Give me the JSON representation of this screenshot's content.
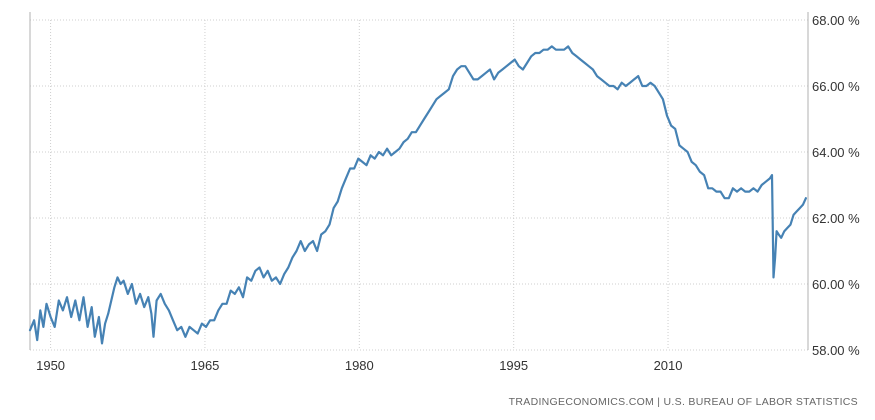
{
  "chart_data": {
    "type": "line",
    "title": "",
    "xlabel": "",
    "ylabel": "",
    "xlim": [
      1948,
      2021.6
    ],
    "ylim": [
      58,
      68
    ],
    "x_ticks": [
      1950,
      1965,
      1980,
      1995,
      2010
    ],
    "x_tick_labels": [
      "1950",
      "1965",
      "1980",
      "1995",
      "2010"
    ],
    "y_ticks": [
      58,
      60,
      62,
      64,
      66,
      68
    ],
    "y_tick_labels": [
      "58.00 %",
      "60.00 %",
      "62.00 %",
      "64.00 %",
      "66.00 %",
      "68.00 %"
    ],
    "grid": true,
    "series_color": "#4682b4",
    "series": [
      {
        "points": [
          [
            1948.0,
            58.6
          ],
          [
            1948.4,
            58.9
          ],
          [
            1948.7,
            58.3
          ],
          [
            1949.0,
            59.2
          ],
          [
            1949.3,
            58.7
          ],
          [
            1949.6,
            59.4
          ],
          [
            1950.0,
            59.0
          ],
          [
            1950.4,
            58.7
          ],
          [
            1950.8,
            59.5
          ],
          [
            1951.2,
            59.2
          ],
          [
            1951.6,
            59.6
          ],
          [
            1952.0,
            59.0
          ],
          [
            1952.4,
            59.5
          ],
          [
            1952.8,
            58.9
          ],
          [
            1953.2,
            59.6
          ],
          [
            1953.6,
            58.7
          ],
          [
            1954.0,
            59.3
          ],
          [
            1954.3,
            58.4
          ],
          [
            1954.7,
            59.0
          ],
          [
            1955.0,
            58.2
          ],
          [
            1955.3,
            58.8
          ],
          [
            1955.6,
            59.1
          ],
          [
            1955.9,
            59.5
          ],
          [
            1956.2,
            59.9
          ],
          [
            1956.5,
            60.2
          ],
          [
            1956.8,
            60.0
          ],
          [
            1957.1,
            60.1
          ],
          [
            1957.5,
            59.7
          ],
          [
            1957.9,
            60.0
          ],
          [
            1958.3,
            59.4
          ],
          [
            1958.7,
            59.7
          ],
          [
            1959.1,
            59.3
          ],
          [
            1959.5,
            59.6
          ],
          [
            1959.8,
            59.1
          ],
          [
            1960.0,
            58.4
          ],
          [
            1960.3,
            59.5
          ],
          [
            1960.7,
            59.7
          ],
          [
            1961.1,
            59.4
          ],
          [
            1961.5,
            59.2
          ],
          [
            1961.9,
            58.9
          ],
          [
            1962.3,
            58.6
          ],
          [
            1962.7,
            58.7
          ],
          [
            1963.1,
            58.4
          ],
          [
            1963.5,
            58.7
          ],
          [
            1963.9,
            58.6
          ],
          [
            1964.3,
            58.5
          ],
          [
            1964.7,
            58.8
          ],
          [
            1965.1,
            58.7
          ],
          [
            1965.5,
            58.9
          ],
          [
            1965.9,
            58.9
          ],
          [
            1966.3,
            59.2
          ],
          [
            1966.7,
            59.4
          ],
          [
            1967.1,
            59.4
          ],
          [
            1967.5,
            59.8
          ],
          [
            1967.9,
            59.7
          ],
          [
            1968.3,
            59.9
          ],
          [
            1968.7,
            59.6
          ],
          [
            1969.1,
            60.2
          ],
          [
            1969.5,
            60.1
          ],
          [
            1969.9,
            60.4
          ],
          [
            1970.3,
            60.5
          ],
          [
            1970.7,
            60.2
          ],
          [
            1971.1,
            60.4
          ],
          [
            1971.5,
            60.1
          ],
          [
            1971.9,
            60.2
          ],
          [
            1972.3,
            60.0
          ],
          [
            1972.7,
            60.3
          ],
          [
            1973.1,
            60.5
          ],
          [
            1973.5,
            60.8
          ],
          [
            1973.9,
            61.0
          ],
          [
            1974.3,
            61.3
          ],
          [
            1974.7,
            61.0
          ],
          [
            1975.1,
            61.2
          ],
          [
            1975.5,
            61.3
          ],
          [
            1975.9,
            61.0
          ],
          [
            1976.3,
            61.5
          ],
          [
            1976.7,
            61.6
          ],
          [
            1977.1,
            61.8
          ],
          [
            1977.5,
            62.3
          ],
          [
            1977.9,
            62.5
          ],
          [
            1978.3,
            62.9
          ],
          [
            1978.7,
            63.2
          ],
          [
            1979.1,
            63.5
          ],
          [
            1979.5,
            63.5
          ],
          [
            1979.9,
            63.8
          ],
          [
            1980.3,
            63.7
          ],
          [
            1980.7,
            63.6
          ],
          [
            1981.1,
            63.9
          ],
          [
            1981.5,
            63.8
          ],
          [
            1981.9,
            64.0
          ],
          [
            1982.3,
            63.9
          ],
          [
            1982.7,
            64.1
          ],
          [
            1983.1,
            63.9
          ],
          [
            1983.5,
            64.0
          ],
          [
            1983.9,
            64.1
          ],
          [
            1984.3,
            64.3
          ],
          [
            1984.7,
            64.4
          ],
          [
            1985.1,
            64.6
          ],
          [
            1985.5,
            64.6
          ],
          [
            1985.9,
            64.8
          ],
          [
            1986.3,
            65.0
          ],
          [
            1986.7,
            65.2
          ],
          [
            1987.1,
            65.4
          ],
          [
            1987.5,
            65.6
          ],
          [
            1987.9,
            65.7
          ],
          [
            1988.3,
            65.8
          ],
          [
            1988.7,
            65.9
          ],
          [
            1989.1,
            66.3
          ],
          [
            1989.5,
            66.5
          ],
          [
            1989.9,
            66.6
          ],
          [
            1990.3,
            66.6
          ],
          [
            1990.7,
            66.4
          ],
          [
            1991.1,
            66.2
          ],
          [
            1991.5,
            66.2
          ],
          [
            1991.9,
            66.3
          ],
          [
            1992.3,
            66.4
          ],
          [
            1992.7,
            66.5
          ],
          [
            1993.1,
            66.2
          ],
          [
            1993.5,
            66.4
          ],
          [
            1993.9,
            66.5
          ],
          [
            1994.3,
            66.6
          ],
          [
            1994.7,
            66.7
          ],
          [
            1995.1,
            66.8
          ],
          [
            1995.5,
            66.6
          ],
          [
            1995.9,
            66.5
          ],
          [
            1996.3,
            66.7
          ],
          [
            1996.7,
            66.9
          ],
          [
            1997.1,
            67.0
          ],
          [
            1997.5,
            67.0
          ],
          [
            1997.9,
            67.1
          ],
          [
            1998.3,
            67.1
          ],
          [
            1998.7,
            67.2
          ],
          [
            1999.1,
            67.1
          ],
          [
            1999.5,
            67.1
          ],
          [
            1999.9,
            67.1
          ],
          [
            2000.3,
            67.2
          ],
          [
            2000.7,
            67.0
          ],
          [
            2001.1,
            66.9
          ],
          [
            2001.5,
            66.8
          ],
          [
            2001.9,
            66.7
          ],
          [
            2002.3,
            66.6
          ],
          [
            2002.7,
            66.5
          ],
          [
            2003.1,
            66.3
          ],
          [
            2003.5,
            66.2
          ],
          [
            2003.9,
            66.1
          ],
          [
            2004.3,
            66.0
          ],
          [
            2004.7,
            66.0
          ],
          [
            2005.1,
            65.9
          ],
          [
            2005.5,
            66.1
          ],
          [
            2005.9,
            66.0
          ],
          [
            2006.3,
            66.1
          ],
          [
            2006.7,
            66.2
          ],
          [
            2007.1,
            66.3
          ],
          [
            2007.5,
            66.0
          ],
          [
            2007.9,
            66.0
          ],
          [
            2008.3,
            66.1
          ],
          [
            2008.7,
            66.0
          ],
          [
            2009.1,
            65.8
          ],
          [
            2009.5,
            65.6
          ],
          [
            2009.9,
            65.1
          ],
          [
            2010.3,
            64.8
          ],
          [
            2010.7,
            64.7
          ],
          [
            2011.1,
            64.2
          ],
          [
            2011.5,
            64.1
          ],
          [
            2011.9,
            64.0
          ],
          [
            2012.3,
            63.7
          ],
          [
            2012.7,
            63.6
          ],
          [
            2013.1,
            63.4
          ],
          [
            2013.5,
            63.3
          ],
          [
            2013.9,
            62.9
          ],
          [
            2014.3,
            62.9
          ],
          [
            2014.7,
            62.8
          ],
          [
            2015.1,
            62.8
          ],
          [
            2015.5,
            62.6
          ],
          [
            2015.9,
            62.6
          ],
          [
            2016.3,
            62.9
          ],
          [
            2016.7,
            62.8
          ],
          [
            2017.1,
            62.9
          ],
          [
            2017.5,
            62.8
          ],
          [
            2017.9,
            62.8
          ],
          [
            2018.3,
            62.9
          ],
          [
            2018.7,
            62.8
          ],
          [
            2019.1,
            63.0
          ],
          [
            2019.5,
            63.1
          ],
          [
            2019.9,
            63.2
          ],
          [
            2020.1,
            63.3
          ],
          [
            2020.25,
            60.2
          ],
          [
            2020.4,
            60.8
          ],
          [
            2020.55,
            61.6
          ],
          [
            2020.75,
            61.5
          ],
          [
            2021.0,
            61.4
          ],
          [
            2021.3,
            61.6
          ],
          [
            2021.6,
            61.7
          ],
          [
            2021.9,
            61.8
          ],
          [
            2022.2,
            62.1
          ],
          [
            2022.5,
            62.2
          ],
          [
            2022.8,
            62.3
          ],
          [
            2023.1,
            62.4
          ],
          [
            2023.4,
            62.6
          ]
        ]
      }
    ]
  },
  "source": "TRADINGECONOMICS.COM  |  U.S. BUREAU OF LABOR STATISTICS"
}
